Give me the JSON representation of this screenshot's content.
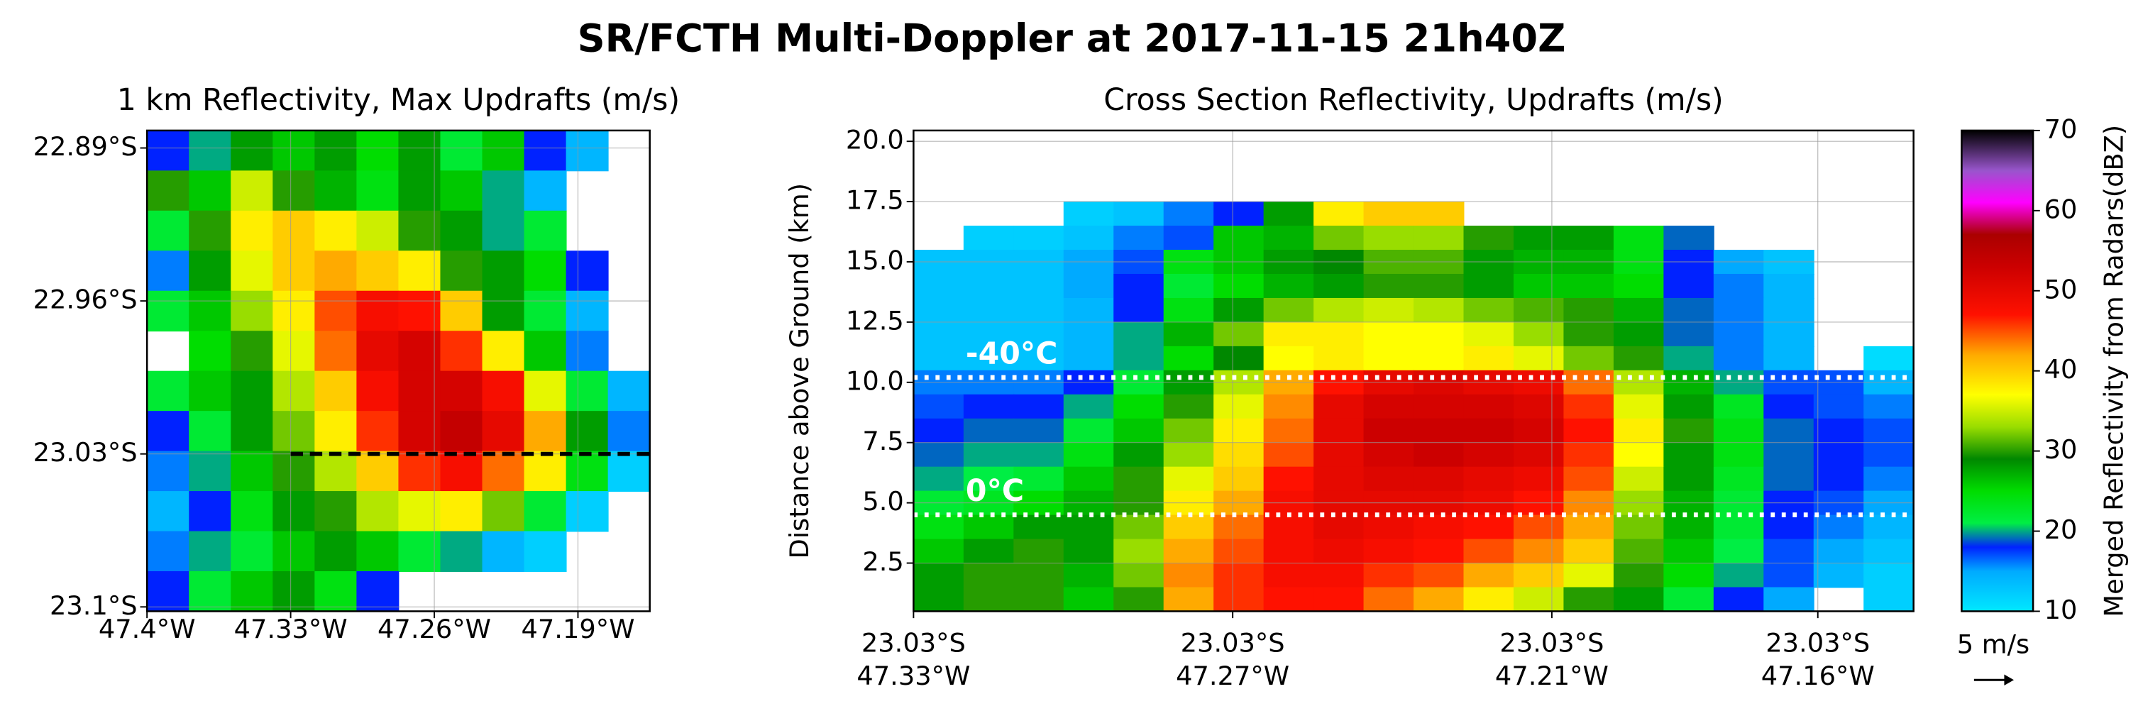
{
  "title": "SR/FCTH Multi-Doppler at 2017-11-15 21h40Z",
  "chart_data": [
    {
      "type": "heatmap",
      "title": "1 km Reflectivity, Max Updrafts (m/s)",
      "xlim": [
        -47.4,
        -47.155
      ],
      "ylim": [
        -23.102,
        -22.882
      ],
      "xticks": [
        {
          "value": -47.4,
          "label": "47.4°W"
        },
        {
          "value": -47.33,
          "label": "47.33°W"
        },
        {
          "value": -47.26,
          "label": "47.26°W"
        },
        {
          "value": -47.19,
          "label": "47.19°W"
        }
      ],
      "yticks": [
        {
          "value": -22.89,
          "label": "22.89°S"
        },
        {
          "value": -22.96,
          "label": "22.96°S"
        },
        {
          "value": -23.03,
          "label": "23.03°S"
        },
        {
          "value": -23.1,
          "label": "23.1°S"
        }
      ],
      "grid": true,
      "section_line": {
        "lat": -23.03,
        "lon_start": -47.33,
        "lon_end": -47.155
      },
      "z": [
        [
          18,
          20,
          28,
          26,
          28,
          25,
          28,
          22,
          26,
          18,
          14,
          null
        ],
        [
          30,
          26,
          35,
          30,
          27,
          24,
          28,
          26,
          20,
          14,
          null,
          null
        ],
        [
          22,
          30,
          38,
          40,
          38,
          35,
          30,
          28,
          20,
          22,
          null,
          null
        ],
        [
          16,
          28,
          36,
          40,
          42,
          40,
          38,
          30,
          28,
          25,
          18,
          null
        ],
        [
          22,
          26,
          33,
          38,
          45,
          48,
          47,
          40,
          28,
          22,
          14,
          null
        ],
        [
          null,
          25,
          30,
          36,
          44,
          50,
          52,
          46,
          38,
          26,
          16,
          null
        ],
        [
          22,
          26,
          28,
          34,
          40,
          48,
          52,
          52,
          48,
          36,
          22,
          14
        ],
        [
          18,
          22,
          28,
          32,
          38,
          46,
          52,
          54,
          50,
          42,
          28,
          16
        ],
        [
          16,
          20,
          26,
          30,
          34,
          40,
          46,
          48,
          44,
          38,
          24,
          12
        ],
        [
          14,
          18,
          24,
          28,
          30,
          34,
          36,
          38,
          32,
          22,
          12,
          null
        ],
        [
          16,
          20,
          22,
          26,
          28,
          26,
          22,
          20,
          14,
          12,
          null,
          null
        ],
        [
          18,
          22,
          26,
          28,
          24,
          18,
          null,
          null,
          null,
          null,
          null,
          null
        ]
      ]
    },
    {
      "type": "heatmap",
      "title": "Cross Section Reflectivity, Updrafts (m/s)",
      "ylabel": "Distance above Ground (km)",
      "xlim": [
        -47.33,
        -47.142
      ],
      "ylim": [
        0.5,
        20.45
      ],
      "xticks": [
        {
          "value": -47.33,
          "label": "47.33°W"
        },
        {
          "value": -47.27,
          "label": "47.27°W"
        },
        {
          "value": -47.21,
          "label": "47.21°W"
        },
        {
          "value": -47.16,
          "label": "47.16°W"
        }
      ],
      "xtick_lat_labels": [
        "23.03°S",
        "23.03°S",
        "23.03°S",
        "23.03°S"
      ],
      "yticks": [
        {
          "value": 2.5,
          "label": "2.5"
        },
        {
          "value": 5,
          "label": "5.0"
        },
        {
          "value": 7.5,
          "label": "7.5"
        },
        {
          "value": 10,
          "label": "10.0"
        },
        {
          "value": 12.5,
          "label": "12.5"
        },
        {
          "value": 15,
          "label": "15.0"
        },
        {
          "value": 17.5,
          "label": "17.5"
        },
        {
          "value": 20,
          "label": "20.0"
        }
      ],
      "grid": true,
      "z_extent_y": [
        0.5,
        17.5
      ],
      "isotherms": [
        {
          "label": "-40°C",
          "height": 10.2
        },
        {
          "label": "0°C",
          "height": 4.5
        }
      ],
      "vector_key": "5 m/s",
      "z": [
        [
          null,
          null,
          null,
          12,
          13,
          16,
          18,
          28,
          38,
          40,
          40,
          null,
          null,
          null,
          null,
          null,
          null,
          null,
          null,
          null
        ],
        [
          null,
          12,
          12,
          13,
          16,
          17,
          26,
          27,
          32,
          33,
          33,
          30,
          28,
          28,
          24,
          19,
          null,
          null,
          null,
          null
        ],
        [
          13,
          13,
          13,
          15,
          17,
          24,
          26,
          28,
          29,
          31,
          31,
          28,
          27,
          27,
          24,
          18,
          15,
          13,
          null,
          null
        ],
        [
          13,
          13,
          13,
          15,
          18,
          22,
          25,
          27,
          28,
          30,
          30,
          28,
          26,
          26,
          25,
          18,
          16,
          14,
          null,
          null
        ],
        [
          13,
          13,
          13,
          14,
          18,
          24,
          28,
          32,
          34,
          35,
          34,
          32,
          31,
          30,
          27,
          19,
          16,
          14,
          null,
          null
        ],
        [
          13,
          13,
          13,
          14,
          20,
          27,
          32,
          38,
          38,
          37,
          37,
          36,
          33,
          30,
          28,
          19,
          16,
          14,
          null,
          null
        ],
        [
          13,
          13,
          13,
          14,
          20,
          25,
          29,
          37,
          38,
          37,
          37,
          38,
          36,
          32,
          30,
          20,
          16,
          14,
          null,
          11
        ],
        [
          16,
          16,
          16,
          18,
          22,
          28,
          34,
          42,
          47,
          50,
          51,
          50,
          49,
          44,
          34,
          27,
          20,
          17,
          17,
          14
        ],
        [
          17,
          18,
          18,
          20,
          25,
          30,
          36,
          43,
          50,
          52,
          52,
          52,
          51,
          46,
          36,
          28,
          23,
          18,
          17,
          16
        ],
        [
          18,
          19,
          19,
          22,
          26,
          32,
          38,
          44,
          50,
          53,
          53,
          53,
          52,
          47,
          38,
          30,
          24,
          19,
          18,
          17
        ],
        [
          19,
          20,
          20,
          24,
          28,
          33,
          39,
          45,
          50,
          52,
          53,
          52,
          51,
          46,
          37,
          28,
          24,
          19,
          18,
          17
        ],
        [
          20,
          21,
          22,
          26,
          30,
          36,
          40,
          47,
          50,
          51,
          51,
          50,
          49,
          45,
          35,
          28,
          23,
          19,
          18,
          16
        ],
        [
          22,
          23,
          25,
          27,
          30,
          38,
          42,
          48,
          50,
          50,
          50,
          49,
          47,
          43,
          33,
          27,
          22,
          18,
          17,
          15
        ],
        [
          24,
          26,
          28,
          28,
          32,
          40,
          44,
          48,
          50,
          49,
          48,
          47,
          45,
          42,
          32,
          27,
          22,
          18,
          16,
          14
        ],
        [
          26,
          28,
          30,
          28,
          33,
          42,
          45,
          48,
          49,
          48,
          47,
          45,
          43,
          40,
          31,
          26,
          21,
          17,
          15,
          13
        ],
        [
          28,
          30,
          30,
          27,
          32,
          43,
          46,
          48,
          48,
          46,
          45,
          42,
          40,
          36,
          30,
          25,
          20,
          17,
          14,
          12
        ],
        [
          28,
          30,
          30,
          26,
          30,
          42,
          46,
          47,
          47,
          44,
          42,
          38,
          35,
          30,
          28,
          22,
          18,
          15,
          null,
          12
        ]
      ],
      "colorbar": {
        "label": "Merged Reflectivity from Radars(dBZ)",
        "lim": [
          10,
          70
        ],
        "ticks": [
          10,
          20,
          30,
          40,
          50,
          60,
          70
        ],
        "colormap": [
          [
            10,
            "#00e8ff"
          ],
          [
            15,
            "#00aaff"
          ],
          [
            18,
            "#0022ff"
          ],
          [
            21,
            "#00ee44"
          ],
          [
            25,
            "#00dd00"
          ],
          [
            29,
            "#008800"
          ],
          [
            33,
            "#99dd00"
          ],
          [
            37,
            "#ffff00"
          ],
          [
            42,
            "#ffaa00"
          ],
          [
            47,
            "#ff1100"
          ],
          [
            53,
            "#cc0000"
          ],
          [
            57,
            "#aa0000"
          ],
          [
            61,
            "#ff00ff"
          ],
          [
            65,
            "#9955cc"
          ],
          [
            70,
            "#000000"
          ]
        ]
      }
    }
  ]
}
